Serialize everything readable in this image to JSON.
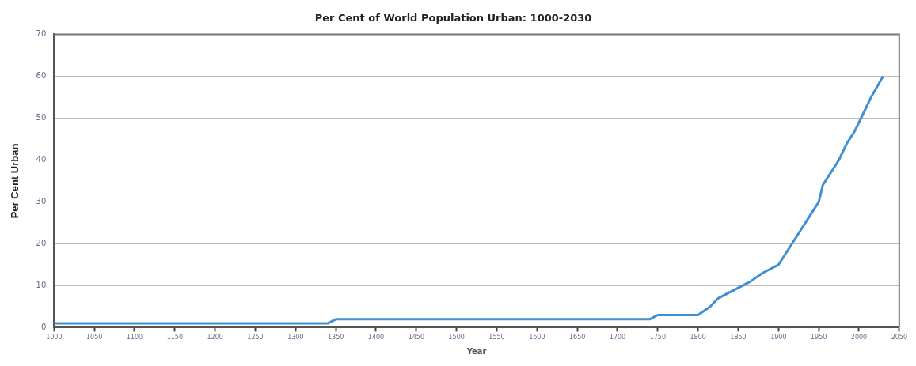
{
  "chart_data": {
    "type": "line",
    "title": "Per Cent of World Population Urban: 1000-2030",
    "xlabel": "Year",
    "ylabel": "Per Cent Urban",
    "series": [
      {
        "color": "#3f8fd2",
        "x": [
          1000,
          1340,
          1350,
          1740,
          1750,
          1800,
          1815,
          1825,
          1865,
          1880,
          1900,
          1950,
          1955,
          1975,
          1985,
          1995,
          2005,
          2015,
          2030
        ],
        "values": [
          1,
          1,
          2,
          2,
          3,
          3,
          5,
          7,
          11,
          13,
          15,
          30,
          34,
          40,
          44,
          47,
          51,
          55,
          60
        ]
      }
    ],
    "xlim": [
      1000,
      2050
    ],
    "xticks": [
      1000,
      1050,
      1100,
      1150,
      1200,
      1250,
      1300,
      1350,
      1400,
      1450,
      1500,
      1550,
      1600,
      1650,
      1700,
      1750,
      1800,
      1850,
      1900,
      1950,
      2000,
      2050
    ],
    "ylim": [
      0,
      70
    ],
    "yticks": [
      0,
      10,
      20,
      30,
      40,
      50,
      60,
      70
    ],
    "grid": "y",
    "legend": false,
    "marker": "none",
    "line_style": "solid"
  }
}
